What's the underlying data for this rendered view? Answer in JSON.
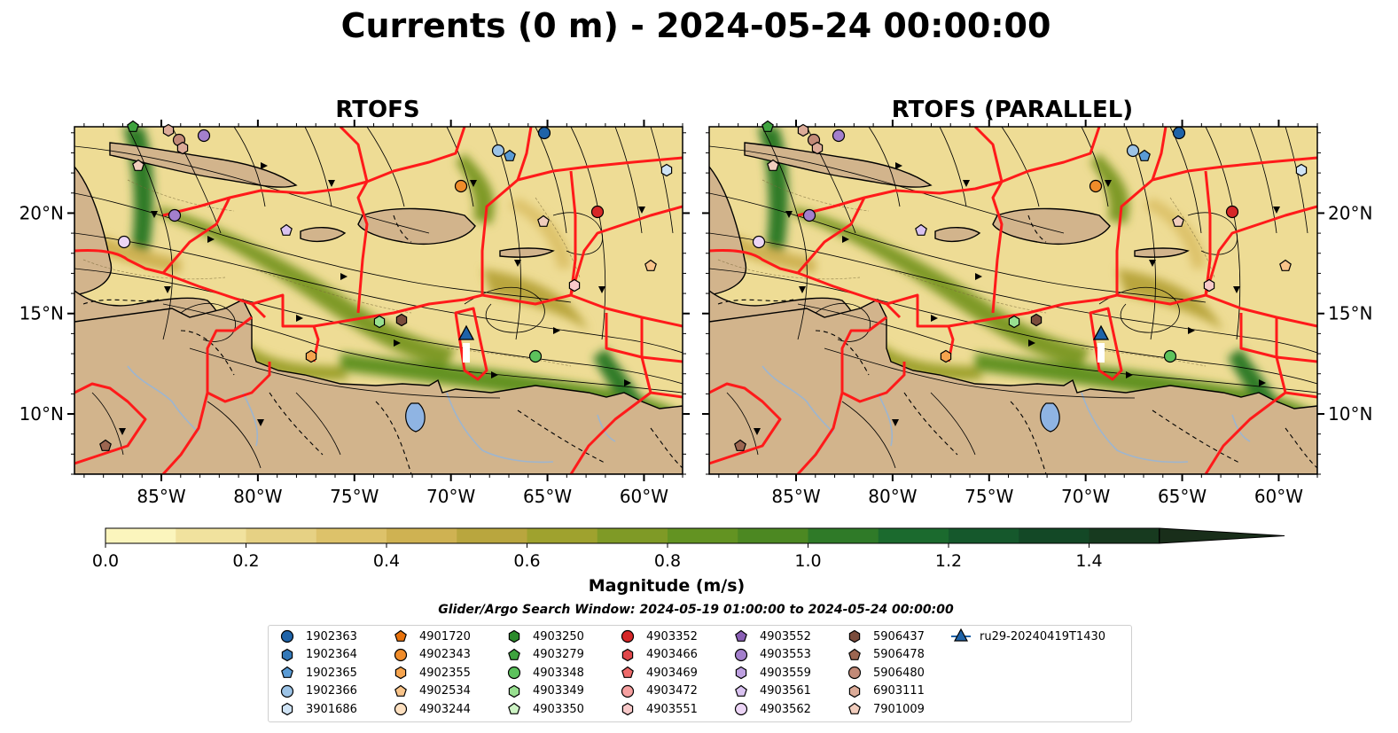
{
  "figure": {
    "title": "Currents (0 m) - 2024-05-24 00:00:00",
    "panels": [
      {
        "title": "RTOFS"
      },
      {
        "title": "RTOFS (PARALLEL)"
      }
    ],
    "x_ticks": [
      "85°W",
      "80°W",
      "75°W",
      "70°W",
      "65°W",
      "60°W"
    ],
    "y_ticks": [
      "20°N",
      "15°N",
      "10°N"
    ]
  },
  "colorbar": {
    "label": "Magnitude (m/s)",
    "ticks": [
      "0.0",
      "0.2",
      "0.4",
      "0.6",
      "0.8",
      "1.0",
      "1.2",
      "1.4"
    ],
    "range": [
      0,
      1.6
    ],
    "extend": "max",
    "colors": [
      "#fbf5bd",
      "#f1e29e",
      "#e6d184",
      "#ddc26a",
      "#cfb252",
      "#b9a63e",
      "#9fa22e",
      "#7f9a26",
      "#639322",
      "#4c8822",
      "#2f7a28",
      "#1b6a2e",
      "#15582c",
      "#134826",
      "#173a1f",
      "#192e1a"
    ]
  },
  "search_window": "Glider/Argo Search Window: 2024-05-19 01:00:00 to 2024-05-24 00:00:00",
  "legend": {
    "items": [
      {
        "label": "1902363",
        "marker": "circle",
        "color": "#1f63a8"
      },
      {
        "label": "1902364",
        "marker": "hexagon",
        "color": "#3378b8"
      },
      {
        "label": "1902365",
        "marker": "pentagon",
        "color": "#5a9bd5"
      },
      {
        "label": "1902366",
        "marker": "circle",
        "color": "#9cc3e6"
      },
      {
        "label": "3901686",
        "marker": "hexagon",
        "color": "#cfe3f5"
      },
      {
        "label": "4901720",
        "marker": "pentagon",
        "color": "#e8720c"
      },
      {
        "label": "4902343",
        "marker": "circle",
        "color": "#f08c2a"
      },
      {
        "label": "4902355",
        "marker": "hexagon",
        "color": "#f6a44e"
      },
      {
        "label": "4902534",
        "marker": "pentagon",
        "color": "#f9c48a"
      },
      {
        "label": "4903244",
        "marker": "circle",
        "color": "#fde0c0"
      },
      {
        "label": "4903250",
        "marker": "hexagon",
        "color": "#2b8a2b"
      },
      {
        "label": "4903279",
        "marker": "pentagon",
        "color": "#3ea33e"
      },
      {
        "label": "4903348",
        "marker": "circle",
        "color": "#5cc25c"
      },
      {
        "label": "4903349",
        "marker": "hexagon",
        "color": "#98e090"
      },
      {
        "label": "4903350",
        "marker": "pentagon",
        "color": "#cdf3c4"
      },
      {
        "label": "4903352",
        "marker": "circle",
        "color": "#d62728"
      },
      {
        "label": "4903466",
        "marker": "hexagon",
        "color": "#e0474a"
      },
      {
        "label": "4903469",
        "marker": "pentagon",
        "color": "#ee6a6a"
      },
      {
        "label": "4903472",
        "marker": "circle",
        "color": "#f6a0a0"
      },
      {
        "label": "4903551",
        "marker": "hexagon",
        "color": "#f8c9c9"
      },
      {
        "label": "4903552",
        "marker": "pentagon",
        "color": "#8a5fb5"
      },
      {
        "label": "4903553",
        "marker": "circle",
        "color": "#a37fcc"
      },
      {
        "label": "4903559",
        "marker": "hexagon",
        "color": "#bd9fe0"
      },
      {
        "label": "4903561",
        "marker": "pentagon",
        "color": "#d9c2f0"
      },
      {
        "label": "4903562",
        "marker": "circle",
        "color": "#ecd5f6"
      },
      {
        "label": "5906437",
        "marker": "hexagon",
        "color": "#7a4c3c"
      },
      {
        "label": "5906478",
        "marker": "pentagon",
        "color": "#9c6651"
      },
      {
        "label": "5906480",
        "marker": "circle",
        "color": "#c28a78"
      },
      {
        "label": "6903111",
        "marker": "hexagon",
        "color": "#dcab98"
      },
      {
        "label": "7901009",
        "marker": "pentagon",
        "color": "#f1cdbd"
      },
      {
        "label": "ru29-20240419T1430",
        "marker": "triangle-line",
        "color": "#1f63a8"
      }
    ]
  },
  "colors": {
    "land": "#d2b48c",
    "lake": "#8fb4e3",
    "river": "#9db5cf",
    "eez_boundary": "#ff1a1a",
    "streamline": "#000000"
  }
}
